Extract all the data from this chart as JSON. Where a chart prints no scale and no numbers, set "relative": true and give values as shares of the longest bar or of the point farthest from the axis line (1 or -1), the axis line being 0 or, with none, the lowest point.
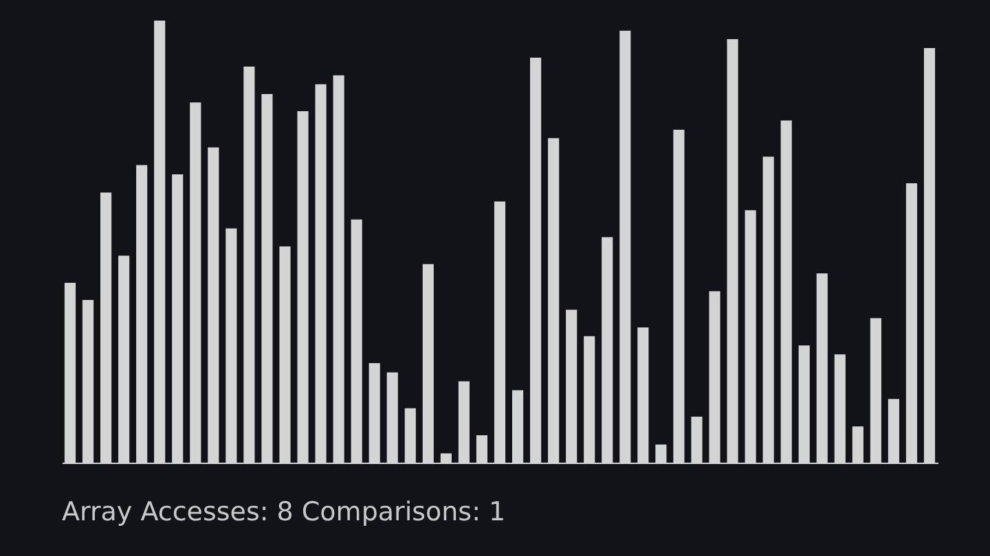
{
  "chart_data": {
    "type": "bar",
    "relative": true,
    "color": "#d4d4d4",
    "categories": [
      null,
      null,
      null,
      null,
      null,
      null,
      null,
      null,
      null,
      null,
      null,
      null,
      null,
      null,
      null,
      null,
      null,
      null,
      null,
      null,
      null,
      null,
      null,
      null,
      null,
      null,
      null,
      null,
      null,
      null,
      null,
      null,
      null,
      null,
      null,
      null,
      null,
      null,
      null,
      null,
      null,
      null,
      null,
      null,
      null,
      null,
      null,
      null,
      null
    ],
    "values": [
      0.407,
      0.368,
      0.611,
      0.468,
      0.673,
      1,
      0.652,
      0.815,
      0.713,
      0.53,
      0.896,
      0.834,
      0.489,
      0.795,
      0.856,
      0.876,
      0.55,
      0.225,
      0.204,
      0.123,
      0.449,
      0.021,
      0.184,
      0.062,
      0.591,
      0.164,
      0.916,
      0.734,
      0.346,
      0.286,
      0.51,
      0.977,
      0.306,
      0.041,
      0.753,
      0.104,
      0.388,
      0.958,
      0.571,
      0.692,
      0.774,
      0.265,
      0.428,
      0.245,
      0.082,
      0.327,
      0.144,
      0.632,
      0.938
    ],
    "annotations": [
      "Array Accesses: 8 Comparisons: 1"
    ],
    "grid": false
  }
}
